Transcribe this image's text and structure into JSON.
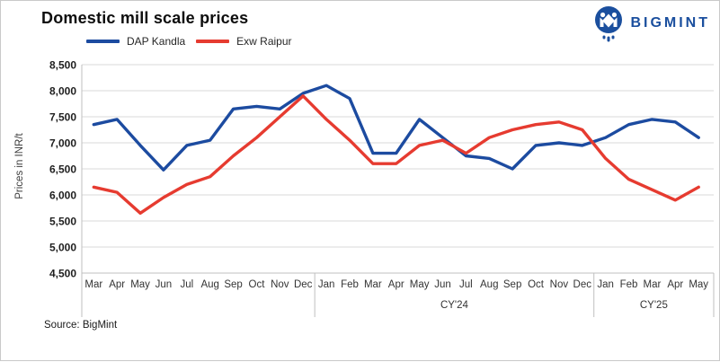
{
  "header": {
    "title": "Domestic mill scale prices",
    "logo_text": "BIGMINT"
  },
  "legend": {
    "items": [
      {
        "label": "DAP Kandla",
        "color": "#1c4ba0"
      },
      {
        "label": "Exw Raipur",
        "color": "#e63b30"
      }
    ]
  },
  "source": "Source: BigMint",
  "colors": {
    "blue_line": "#1c4ba0",
    "red_line": "#e63b30",
    "logo_blue": "#1b4f9e",
    "gridline": "#d9d9d9",
    "axis_line": "#bfbfbf",
    "tick_text": "#1f1f1f",
    "month_text": "#333333"
  },
  "chart_data": {
    "type": "line",
    "title": "Domestic mill scale prices",
    "xlabel": "",
    "ylabel": "Prices in INR/t",
    "ylim": [
      4500,
      8500
    ],
    "ytick_step": 500,
    "grid": true,
    "legend_position": "top-left",
    "categories": [
      "Mar",
      "Apr",
      "May",
      "Jun",
      "Jul",
      "Aug",
      "Sep",
      "Oct",
      "Nov",
      "Dec",
      "Jan",
      "Feb",
      "Mar",
      "Apr",
      "May",
      "Jun",
      "Jul",
      "Aug",
      "Sep",
      "Oct",
      "Nov",
      "Dec",
      "Jan",
      "Feb",
      "Mar",
      "Apr",
      "May"
    ],
    "groups": [
      {
        "label": "",
        "span": 10
      },
      {
        "label": "CY'24",
        "span": 12
      },
      {
        "label": "CY'25",
        "span": 5
      }
    ],
    "series": [
      {
        "name": "DAP Kandla",
        "color": "#1c4ba0",
        "values": [
          7350,
          7450,
          6950,
          6480,
          6950,
          7050,
          7650,
          7700,
          7650,
          7950,
          8100,
          7850,
          6800,
          6800,
          7450,
          7100,
          6750,
          6700,
          6500,
          6950,
          7000,
          6950,
          7100,
          7350,
          7450,
          7400,
          7100
        ]
      },
      {
        "name": "Exw Raipur",
        "color": "#e63b30",
        "values": [
          6150,
          6050,
          5650,
          5950,
          6200,
          6350,
          6750,
          7100,
          7500,
          7900,
          7450,
          7050,
          6600,
          6600,
          6950,
          7050,
          6800,
          7100,
          7250,
          7350,
          7400,
          7250,
          6700,
          6300,
          6100,
          5900,
          6150
        ]
      }
    ]
  }
}
